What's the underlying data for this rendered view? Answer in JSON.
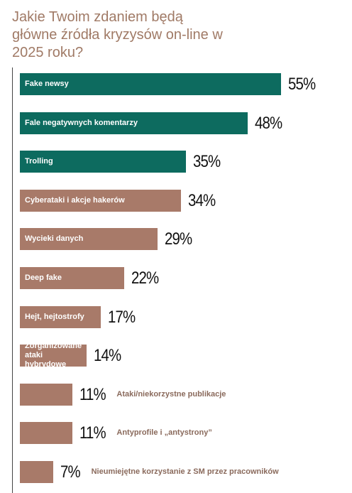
{
  "chart_data": {
    "type": "bar",
    "orientation": "horizontal",
    "title": "Jakie Twoim zdaniem będą główne źródła kryzysów on-line w 2025 roku?",
    "categories": [
      "Fake newsy",
      "Fale negatywnych komentarzy",
      "Trolling",
      "Cyberataki i akcje hakerów",
      "Wycieki danych",
      "Deep fake",
      "Hejt, hejtostrofy",
      "Zorganizowane ataki hybrydowe",
      "Ataki/niekorzystne publikacje",
      "Antyprofile i „antystrony”",
      "Nieumiejętne korzystanie z SM przez pracowników"
    ],
    "values": [
      55,
      48,
      35,
      34,
      29,
      22,
      17,
      14,
      11,
      11,
      7
    ],
    "value_labels": [
      "55%",
      "48%",
      "35%",
      "34%",
      "29%",
      "22%",
      "17%",
      "14%",
      "11%",
      "11%",
      "7%"
    ],
    "colors": [
      "#0d6b5f",
      "#0d6b5f",
      "#0d6b5f",
      "#a87a69",
      "#a87a69",
      "#a87a69",
      "#a87a69",
      "#a87a69",
      "#a87a69",
      "#a87a69",
      "#a87a69"
    ]
  }
}
